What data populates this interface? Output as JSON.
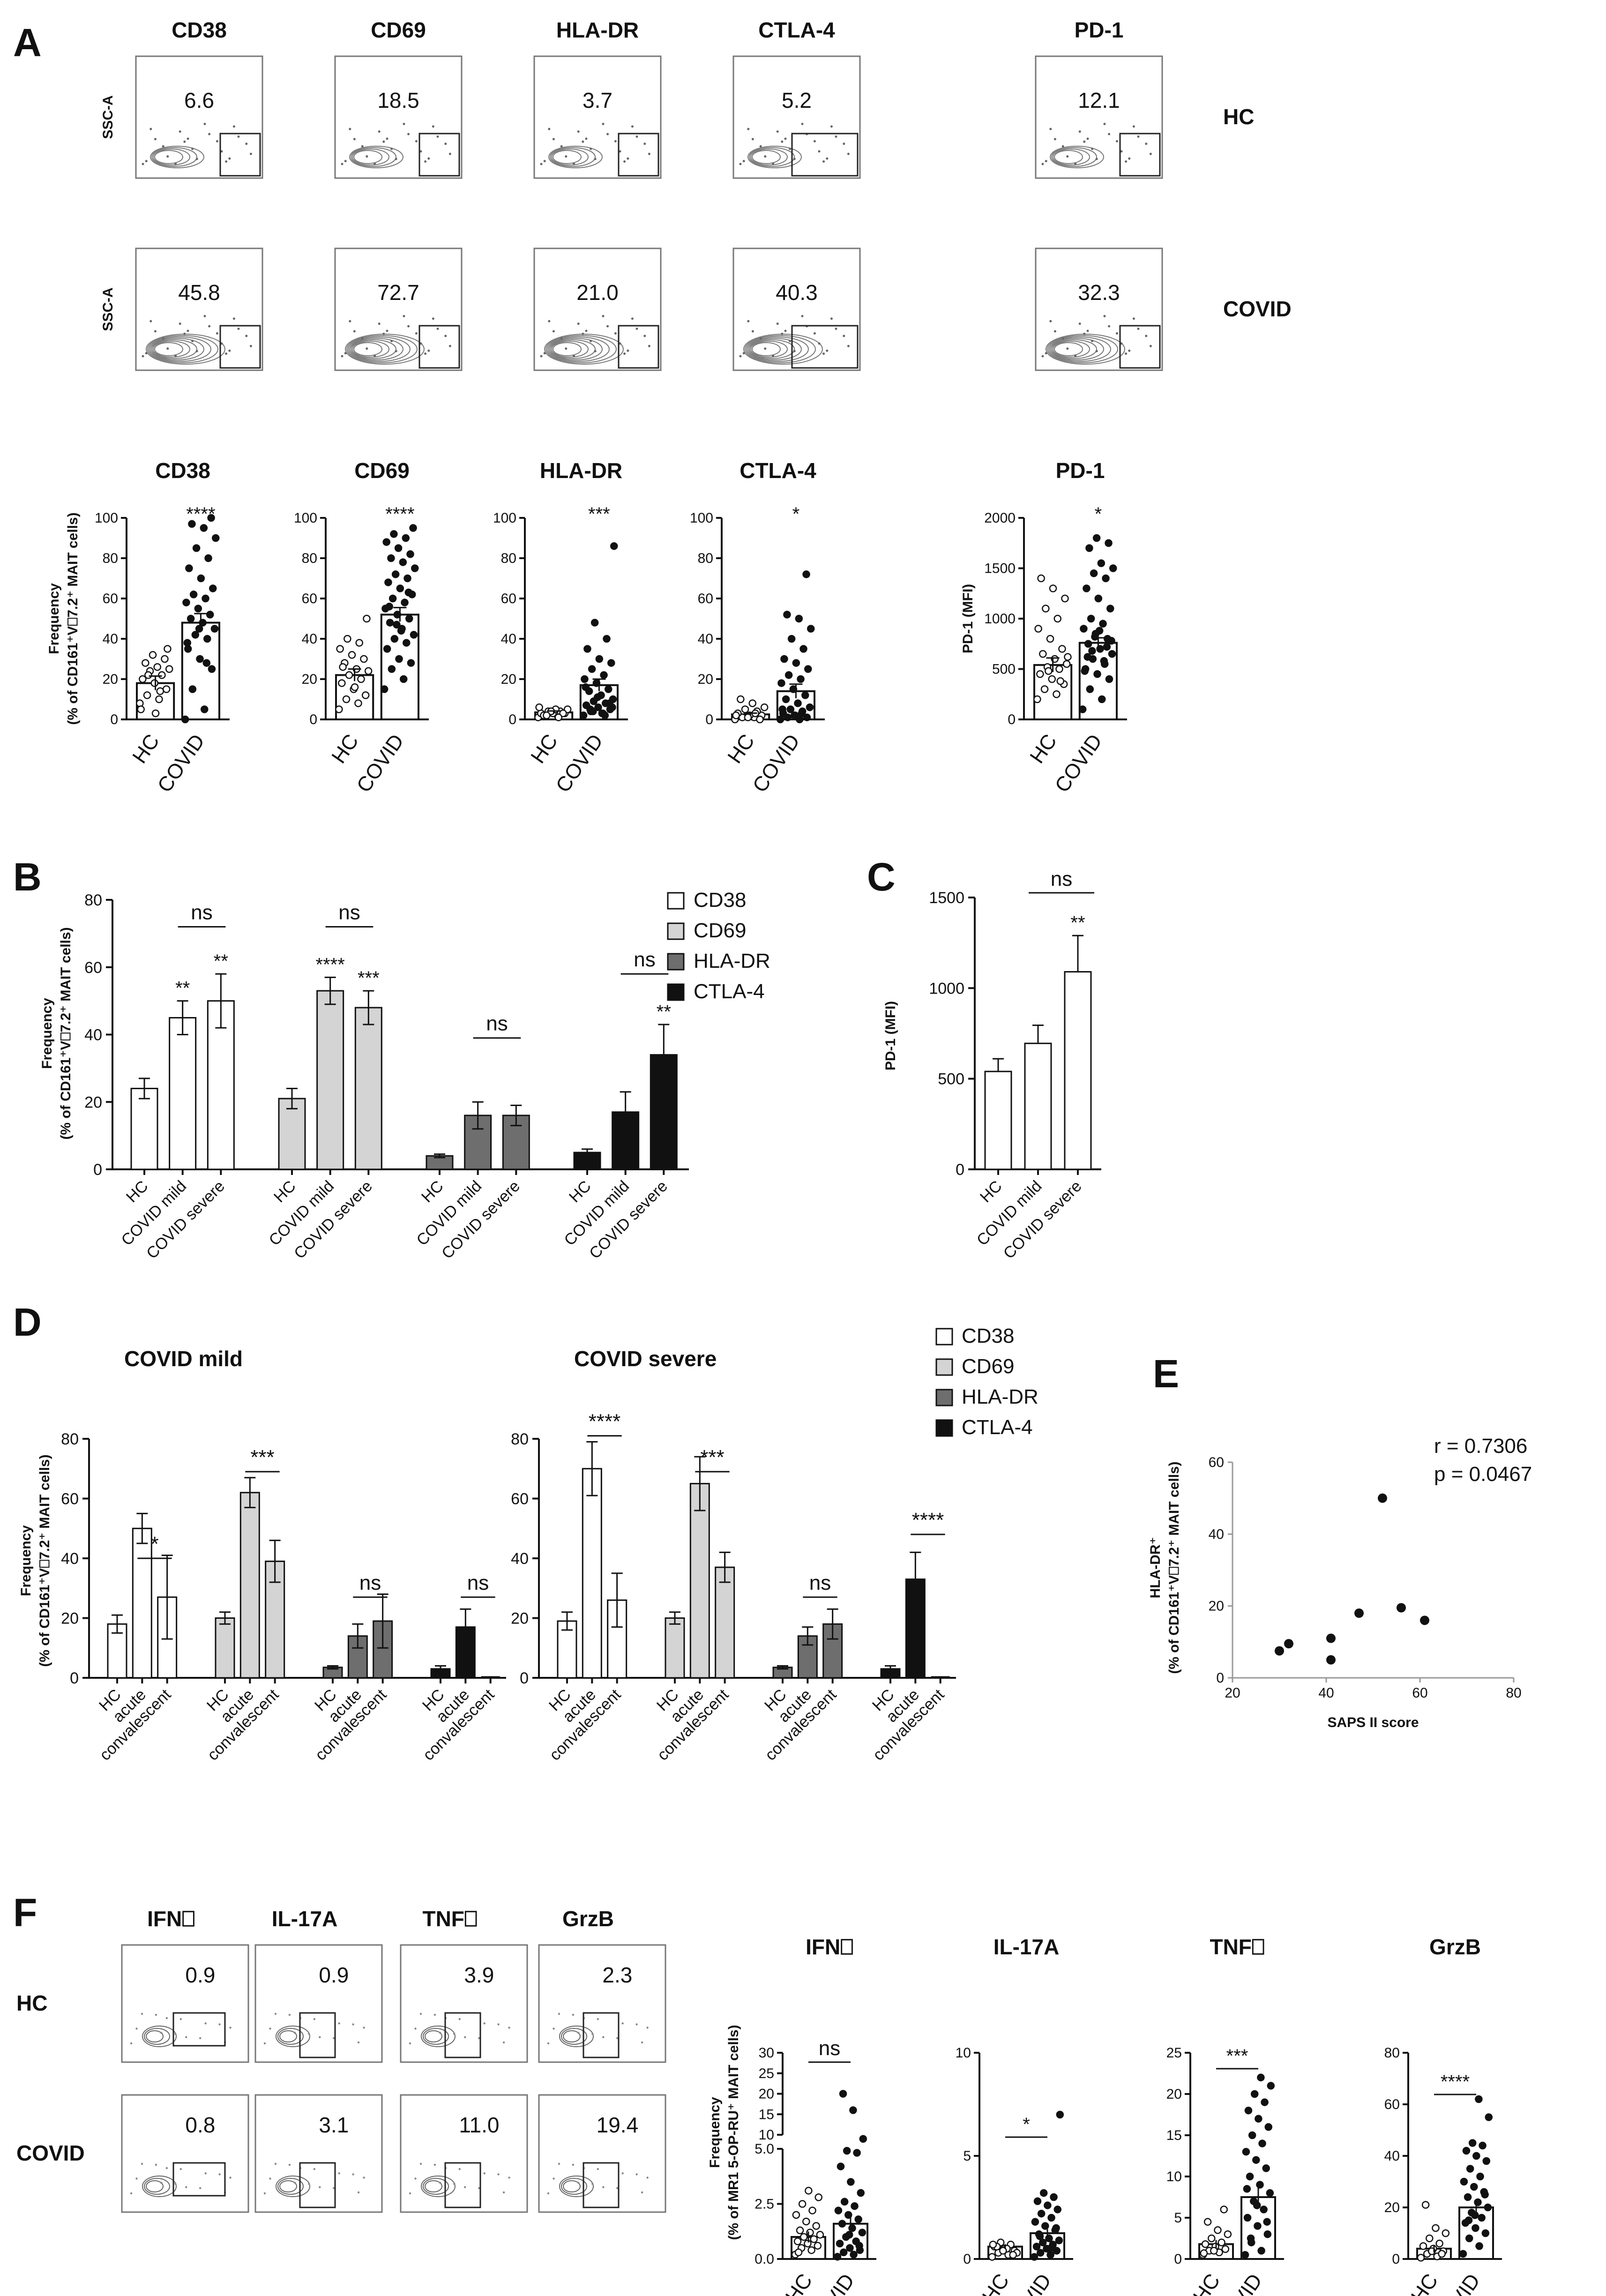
{
  "panel_letters": [
    "A",
    "B",
    "C",
    "D",
    "E",
    "F"
  ],
  "chart_data": [
    {
      "id": "A_flow",
      "type": "table",
      "ylabel": "SSC-A",
      "rows": [
        "HC",
        "COVID"
      ],
      "markers": [
        "CD38",
        "CD69",
        "HLA-DR",
        "CTLA-4",
        "PD-1"
      ],
      "values": {
        "HC": [
          "6.6",
          "18.5",
          "3.7",
          "5.2",
          "12.1"
        ],
        "COVID": [
          "45.8",
          "72.7",
          "21.0",
          "40.3",
          "32.3"
        ]
      }
    },
    {
      "id": "A_scatter",
      "type": "bar",
      "ylabel_line1": "Frequency",
      "ylabel_line2": "(% of CD161⁺V⎕7.2⁺ MAIT cells)",
      "categories": [
        "HC",
        "COVID"
      ],
      "plots": [
        {
          "title": "CD38",
          "ylim": [
            0,
            100
          ],
          "yticks": [
            "0",
            "20",
            "40",
            "60",
            "80",
            "100"
          ],
          "means": [
            18,
            48
          ],
          "errors": [
            3.5,
            4.5
          ],
          "sig": "****",
          "hc": [
            8,
            10,
            12,
            15,
            18,
            20,
            22,
            24,
            25,
            26,
            28,
            30,
            32,
            5,
            14,
            22,
            35,
            3
          ],
          "covid": [
            0,
            5,
            15,
            25,
            30,
            35,
            40,
            42,
            45,
            48,
            50,
            52,
            55,
            58,
            60,
            62,
            65,
            70,
            75,
            80,
            85,
            90,
            95,
            97,
            100,
            45,
            38,
            28
          ]
        },
        {
          "title": "CD69",
          "ylim": [
            0,
            100
          ],
          "yticks": [
            "0",
            "20",
            "40",
            "60",
            "80",
            "100"
          ],
          "means": [
            22,
            52
          ],
          "errors": [
            3,
            3.5
          ],
          "sig": "****",
          "hc": [
            5,
            8,
            10,
            12,
            15,
            18,
            20,
            22,
            24,
            25,
            28,
            30,
            32,
            35,
            38,
            40,
            50,
            16,
            26
          ],
          "covid": [
            15,
            20,
            25,
            28,
            30,
            35,
            38,
            40,
            42,
            45,
            48,
            50,
            52,
            55,
            58,
            60,
            62,
            65,
            68,
            70,
            72,
            75,
            78,
            80,
            82,
            85,
            88,
            90,
            92,
            95,
            44,
            56,
            63,
            47
          ]
        },
        {
          "title": "HLA-DR",
          "ylim": [
            0,
            100
          ],
          "yticks": [
            "0",
            "20",
            "40",
            "60",
            "80",
            "100"
          ],
          "means": [
            3.5,
            17
          ],
          "errors": [
            0.7,
            3
          ],
          "sig": "***",
          "hc": [
            1,
            2,
            2,
            3,
            3,
            3,
            4,
            4,
            5,
            5,
            2,
            3,
            4,
            6,
            1,
            2
          ],
          "covid": [
            2,
            3,
            4,
            5,
            6,
            7,
            8,
            9,
            10,
            12,
            14,
            15,
            18,
            20,
            22,
            25,
            28,
            30,
            35,
            40,
            48,
            86,
            3,
            5,
            8,
            11,
            16,
            2,
            4,
            6
          ]
        },
        {
          "title": "CTLA-4",
          "ylim": [
            0,
            100
          ],
          "yticks": [
            "0",
            "20",
            "40",
            "60",
            "80",
            "100"
          ],
          "means": [
            2.5,
            14
          ],
          "errors": [
            0.6,
            3.5
          ],
          "sig": "*",
          "hc": [
            0,
            1,
            1,
            2,
            2,
            3,
            4,
            5,
            6,
            8,
            10,
            0,
            1,
            2,
            3
          ],
          "covid": [
            0,
            0,
            1,
            1,
            2,
            3,
            4,
            5,
            6,
            8,
            10,
            12,
            15,
            18,
            20,
            22,
            25,
            28,
            30,
            35,
            40,
            45,
            50,
            52,
            72,
            2,
            5,
            3
          ]
        }
      ],
      "pd1": {
        "title": "PD-1",
        "ylabel": "PD-1 (MFI)",
        "ylim": [
          0,
          2000
        ],
        "yticks": [
          "0",
          "500",
          "1000",
          "1500",
          "2000"
        ],
        "means": [
          540,
          760
        ],
        "errors": [
          70,
          50
        ],
        "sig": "*",
        "hc": [
          200,
          250,
          300,
          350,
          400,
          450,
          500,
          520,
          550,
          600,
          650,
          700,
          800,
          900,
          1000,
          1100,
          1200,
          1300,
          1400,
          380,
          480,
          620
        ],
        "covid": [
          100,
          200,
          300,
          400,
          450,
          500,
          550,
          600,
          650,
          700,
          750,
          800,
          850,
          900,
          950,
          1000,
          1100,
          1200,
          1300,
          1400,
          1450,
          1500,
          1550,
          1700,
          1750,
          1800,
          480,
          580,
          680,
          780,
          880,
          620,
          720,
          820
        ]
      }
    },
    {
      "id": "B",
      "type": "bar",
      "ylabel_line1": "Frequency",
      "ylabel_line2": "(% of CD161⁺V⎕7.2⁺ MAIT cells)",
      "ylim": [
        0,
        80
      ],
      "yticks": [
        "0",
        "20",
        "40",
        "60",
        "80"
      ],
      "categories": [
        "HC",
        "COVID mild",
        "COVID severe"
      ],
      "series": [
        {
          "name": "CD38",
          "color": "#ffffff",
          "values": [
            24,
            45,
            50
          ],
          "errors": [
            3,
            5,
            8
          ],
          "sig": [
            "",
            "**",
            "**"
          ]
        },
        {
          "name": "CD69",
          "color": "#d4d4d4",
          "values": [
            21,
            53,
            48
          ],
          "errors": [
            3,
            4,
            5
          ],
          "sig": [
            "",
            "****",
            "***"
          ]
        },
        {
          "name": "HLA-DR",
          "color": "#6e6e6e",
          "values": [
            4,
            16,
            16
          ],
          "errors": [
            0.5,
            4,
            3
          ],
          "sig": [
            "",
            "",
            ""
          ]
        },
        {
          "name": "CTLA-4",
          "color": "#111111",
          "values": [
            5,
            17,
            34
          ],
          "errors": [
            1,
            6,
            9
          ],
          "sig": [
            "",
            "",
            "**"
          ]
        }
      ],
      "brackets": [
        "ns",
        "ns",
        "ns",
        "ns"
      ]
    },
    {
      "id": "C",
      "type": "bar",
      "ylabel": "PD-1 (MFI)",
      "ylim": [
        0,
        1500
      ],
      "yticks": [
        "0",
        "500",
        "1000",
        "1500"
      ],
      "categories": [
        "HC",
        "COVID mild",
        "COVID severe"
      ],
      "values": [
        540,
        695,
        1090
      ],
      "errors": [
        70,
        100,
        200
      ],
      "sig": [
        "",
        "",
        "**"
      ],
      "bracket": "ns"
    },
    {
      "id": "D",
      "type": "bar",
      "ylabel_line1": "Frequency",
      "ylabel_line2": "(% of CD161⁺V⎕7.2⁺ MAIT cells)",
      "ylim": [
        0,
        80
      ],
      "yticks": [
        "0",
        "20",
        "40",
        "60",
        "80"
      ],
      "categories": [
        "HC",
        "acute",
        "convalescent"
      ],
      "legend": [
        "CD38",
        "CD69",
        "HLA-DR",
        "CTLA-4"
      ],
      "subplots": [
        {
          "title": "COVID mild",
          "series": [
            {
              "name": "CD38",
              "color": "#ffffff",
              "values": [
                18,
                50,
                27
              ],
              "errors": [
                3,
                5,
                14
              ]
            },
            {
              "name": "CD69",
              "color": "#d4d4d4",
              "values": [
                20,
                62,
                39
              ],
              "errors": [
                2,
                5,
                7
              ]
            },
            {
              "name": "HLA-DR",
              "color": "#6e6e6e",
              "values": [
                3.5,
                14,
                19
              ],
              "errors": [
                0.5,
                4,
                9
              ]
            },
            {
              "name": "CTLA-4",
              "color": "#111111",
              "values": [
                3,
                17,
                0
              ],
              "errors": [
                1,
                6,
                0
              ]
            }
          ],
          "brackets": [
            "*",
            "***",
            "ns",
            "ns"
          ]
        },
        {
          "title": "COVID severe",
          "series": [
            {
              "name": "CD38",
              "color": "#ffffff",
              "values": [
                19,
                70,
                26
              ],
              "errors": [
                3,
                9,
                9
              ]
            },
            {
              "name": "CD69",
              "color": "#d4d4d4",
              "values": [
                20,
                65,
                37
              ],
              "errors": [
                2,
                9,
                5
              ]
            },
            {
              "name": "HLA-DR",
              "color": "#6e6e6e",
              "values": [
                3.5,
                14,
                18
              ],
              "errors": [
                0.5,
                3,
                5
              ]
            },
            {
              "name": "CTLA-4",
              "color": "#111111",
              "values": [
                3,
                33,
                0
              ],
              "errors": [
                1,
                9,
                0
              ]
            }
          ],
          "brackets": [
            "****",
            "***",
            "ns",
            "****"
          ]
        }
      ]
    },
    {
      "id": "E",
      "type": "scatter",
      "xlabel": "SAPS II score",
      "ylabel_line1": "HLA-DR⁺",
      "ylabel_line2": "(% of CD161⁺V⎕7.2⁺ MAIT cells)",
      "xlim": [
        20,
        80
      ],
      "ylim": [
        0,
        60
      ],
      "xticks": [
        "20",
        "40",
        "60",
        "80"
      ],
      "yticks": [
        "0",
        "20",
        "40",
        "60"
      ],
      "points": [
        [
          30,
          7.5
        ],
        [
          32,
          9.5
        ],
        [
          41,
          5
        ],
        [
          41,
          11
        ],
        [
          47,
          18
        ],
        [
          52,
          50
        ],
        [
          56,
          19.5
        ],
        [
          61,
          16
        ]
      ],
      "r": "r = 0.7306",
      "p": "p = 0.0467"
    },
    {
      "id": "F_flow",
      "type": "table",
      "rows": [
        "HC",
        "COVID"
      ],
      "markers": [
        "IFN⎕",
        "IL-17A",
        "TNF⎕",
        "GrzB"
      ],
      "values": {
        "HC": [
          "0.9",
          "0.9",
          "3.9",
          "2.3"
        ],
        "COVID": [
          "0.8",
          "3.1",
          "11.0",
          "19.4"
        ]
      }
    },
    {
      "id": "F_scatter",
      "type": "bar",
      "ylabel_line1": "Frequency",
      "ylabel_line2": "(% of MR1 5-OP-RU⁺ MAIT cells)",
      "categories": [
        "HC",
        "COVID"
      ],
      "plots": [
        {
          "title": "IFN⎕",
          "sig": "ns",
          "yticks": [
            "0.0",
            "2.5",
            "5.0",
            "10",
            "15",
            "20",
            "25",
            "30"
          ],
          "means": [
            1.0,
            1.6
          ],
          "errors": [
            0.25,
            0.5
          ],
          "hc": [
            0.2,
            0.4,
            0.5,
            0.6,
            0.7,
            0.8,
            0.9,
            1.0,
            1.1,
            1.2,
            1.3,
            1.5,
            1.7,
            2.0,
            2.2,
            2.5,
            2.8,
            3.1,
            0.3
          ],
          "covid": [
            0.1,
            0.2,
            0.3,
            0.4,
            0.5,
            0.7,
            0.8,
            1.0,
            1.2,
            1.4,
            1.6,
            1.8,
            2.0,
            2.2,
            2.4,
            2.6,
            3.0,
            3.5,
            4.2,
            5.6,
            6.1,
            9.0,
            16,
            20,
            0.6,
            1.1
          ]
        },
        {
          "title": "IL-17A",
          "sig": "*",
          "ylim": [
            0,
            10
          ],
          "yticks": [
            "0",
            "5",
            "10"
          ],
          "means": [
            0.6,
            1.25
          ],
          "errors": [
            0.12,
            0.2
          ],
          "hc": [
            0.1,
            0.2,
            0.3,
            0.4,
            0.5,
            0.6,
            0.7,
            0.8,
            0.3,
            0.5,
            0.6,
            0.2,
            0.4,
            0.7
          ],
          "covid": [
            0.1,
            0.2,
            0.3,
            0.4,
            0.5,
            0.6,
            0.7,
            0.8,
            0.9,
            1.0,
            1.2,
            1.4,
            1.6,
            1.8,
            2.0,
            2.2,
            2.4,
            2.6,
            2.8,
            3.0,
            3.2,
            7.0,
            0.5,
            1.1,
            1.5
          ]
        },
        {
          "title": "TNF⎕",
          "sig": "***",
          "ylim": [
            0,
            25
          ],
          "yticks": [
            "0",
            "5",
            "10",
            "15",
            "20",
            "25"
          ],
          "means": [
            1.8,
            7.5
          ],
          "errors": [
            0.5,
            1.2
          ],
          "hc": [
            0.5,
            0.8,
            1.0,
            1.2,
            1.5,
            1.8,
            2.0,
            2.5,
            3.0,
            3.5,
            4.5,
            6.0,
            1.0,
            0.7
          ],
          "covid": [
            0.5,
            1.0,
            2.0,
            3.0,
            4.0,
            5.0,
            6.0,
            7.0,
            8.0,
            9.0,
            10,
            11,
            12,
            13,
            14,
            15,
            16,
            17,
            18,
            19,
            20,
            21,
            22,
            2.5,
            4.5,
            6.5,
            8.5
          ]
        },
        {
          "title": "GrzB",
          "sig": "****",
          "ylim": [
            0,
            80
          ],
          "yticks": [
            "0",
            "20",
            "40",
            "60",
            "80"
          ],
          "means": [
            4,
            20
          ],
          "errors": [
            1.5,
            2.5
          ],
          "hc": [
            0.5,
            1,
            2,
            3,
            4,
            5,
            6,
            8,
            10,
            12,
            21,
            2,
            3
          ],
          "covid": [
            2,
            5,
            8,
            10,
            12,
            14,
            16,
            18,
            20,
            22,
            24,
            26,
            28,
            30,
            32,
            35,
            38,
            40,
            42,
            44,
            45,
            55,
            62,
            15,
            25,
            17
          ]
        }
      ]
    }
  ]
}
